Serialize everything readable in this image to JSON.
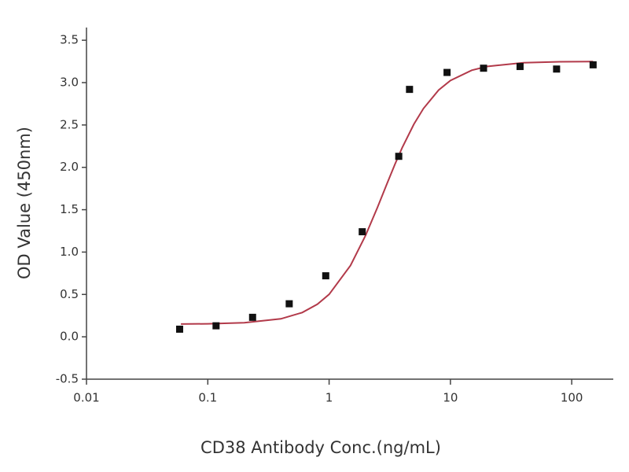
{
  "chart_data": {
    "type": "scatter",
    "xlabel": "CD38  Antibody Conc.(ng/mL)",
    "ylabel": "OD Value (450nm)",
    "x": [
      0.0586,
      0.117,
      0.234,
      0.469,
      0.938,
      1.875,
      3.75,
      4.6,
      9.38,
      18.75,
      37.5,
      75,
      150
    ],
    "values": [
      0.09,
      0.13,
      0.23,
      0.39,
      0.72,
      1.24,
      2.13,
      2.92,
      3.12,
      3.17,
      3.19,
      3.16,
      3.21
    ],
    "color": "#111111",
    "fit": {
      "color": "#b23a4a",
      "x": [
        0.06,
        0.1,
        0.2,
        0.4,
        0.6,
        0.8,
        1,
        1.5,
        2,
        2.5,
        3,
        3.5,
        4,
        5,
        6,
        8,
        10,
        15,
        20,
        40,
        80,
        150
      ],
      "values": [
        0.151,
        0.154,
        0.166,
        0.212,
        0.286,
        0.384,
        0.501,
        0.842,
        1.197,
        1.525,
        1.807,
        2.04,
        2.231,
        2.509,
        2.695,
        2.912,
        3.025,
        3.146,
        3.19,
        3.235,
        3.246,
        3.249
      ]
    },
    "xscale": "log",
    "xlim": [
      0.01,
      220
    ],
    "xticks": [
      0.01,
      0.1,
      1,
      10,
      100
    ],
    "ylim": [
      -0.5,
      3.65
    ],
    "yticks": [
      -0.5,
      {
        "value": 0,
        "label": "0.0"
      },
      0.5,
      {
        "value": 1,
        "label": "1.0"
      },
      1.5,
      {
        "value": 2,
        "label": "2.0"
      },
      2.5,
      {
        "value": 3,
        "label": "3.0"
      },
      3.5
    ]
  }
}
